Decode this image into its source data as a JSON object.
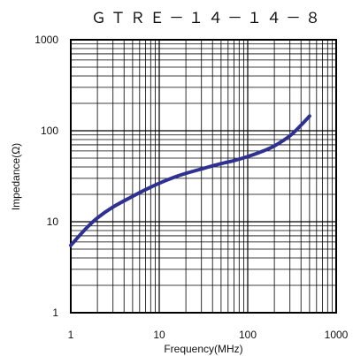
{
  "chart_data": {
    "type": "line",
    "title": "ＧＴＲＥ－１４－１４－８",
    "xlabel": "Frequency(MHz)",
    "ylabel": "Impedance(Ω)",
    "x_scale": "log",
    "y_scale": "log",
    "xlim": [
      1,
      1000
    ],
    "ylim": [
      1,
      1000
    ],
    "x_ticks": [
      "1",
      "10",
      "100",
      "1000"
    ],
    "y_ticks": [
      "1",
      "10",
      "100",
      "1000"
    ],
    "grid": true,
    "series": [
      {
        "color": "#2e3192",
        "x": [
          1,
          1.5,
          2,
          3,
          5,
          7,
          10,
          15,
          20,
          30,
          50,
          70,
          100,
          150,
          200,
          300,
          400,
          500
        ],
        "y": [
          5.5,
          8.5,
          11,
          14.5,
          19,
          22.5,
          26.5,
          31,
          34,
          38,
          43.5,
          47,
          52,
          60,
          68,
          88,
          115,
          145
        ]
      }
    ]
  }
}
